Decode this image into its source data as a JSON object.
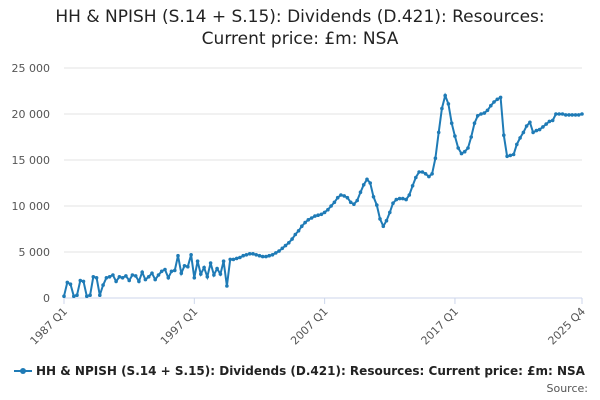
{
  "title_line1": "HH & NPISH (S.14 + S.15): Dividends (D.421): Resources:",
  "title_line2": "Current price: £m: NSA",
  "legend_label": "HH & NPISH (S.14 + S.15): Dividends (D.421): Resources: Current price: £m: NSA",
  "source_label": "Source:",
  "series_color": "#1f7bb6",
  "chart_data": {
    "type": "line",
    "title": "HH & NPISH (S.14 + S.15): Dividends (D.421): Resources: Current price: £m: NSA",
    "xlabel": "",
    "ylabel": "",
    "ylim": [
      0,
      25000
    ],
    "yticks": [
      0,
      5000,
      10000,
      15000,
      20000,
      25000
    ],
    "ytick_labels": [
      "0",
      "5 000",
      "10 000",
      "15 000",
      "20 000",
      "25 000"
    ],
    "xtick_labels": [
      "1987 Q1",
      "1997 Q1",
      "2007 Q1",
      "2017 Q1",
      "2025 Q4"
    ],
    "x_start": "1987 Q1",
    "x_end": "2025 Q4",
    "grid": true,
    "legend": "bottom",
    "series": [
      {
        "name": "HH & NPISH (S.14 + S.15): Dividends (D.421): Resources: Current price: £m: NSA",
        "values": [
          200,
          1700,
          1500,
          200,
          300,
          1900,
          1800,
          200,
          300,
          2300,
          2200,
          300,
          1400,
          2200,
          2300,
          2500,
          1800,
          2300,
          2200,
          2400,
          1900,
          2500,
          2400,
          1800,
          2800,
          2000,
          2300,
          2700,
          2000,
          2500,
          2900,
          3100,
          2200,
          2900,
          3000,
          4600,
          2700,
          3500,
          3400,
          4700,
          2200,
          4000,
          2600,
          3300,
          2300,
          3800,
          2500,
          3200,
          2600,
          4000,
          1300,
          4200,
          4200,
          4300,
          4400,
          4600,
          4700,
          4800,
          4800,
          4700,
          4600,
          4500,
          4500,
          4600,
          4700,
          4900,
          5100,
          5400,
          5700,
          6000,
          6400,
          6900,
          7300,
          7800,
          8200,
          8500,
          8700,
          8900,
          9000,
          9100,
          9300,
          9600,
          10000,
          10400,
          10900,
          11200,
          11100,
          10900,
          10400,
          10200,
          10600,
          11500,
          12300,
          12900,
          12500,
          11000,
          10100,
          8600,
          7800,
          8400,
          9300,
          10300,
          10700,
          10800,
          10800,
          10700,
          11200,
          12200,
          13100,
          13700,
          13700,
          13500,
          13200,
          13500,
          15200,
          18000,
          20600,
          22000,
          21100,
          19000,
          17600,
          16300,
          15700,
          15900,
          16300,
          17500,
          19000,
          19800,
          20000,
          20100,
          20400,
          20900,
          21300,
          21600,
          21800,
          17700,
          15400,
          15500,
          15600,
          16700,
          17400,
          18000,
          18700,
          19100,
          18000,
          18200,
          18300,
          18600,
          18900,
          19200,
          19300,
          20000,
          20000,
          20000,
          19900,
          19900,
          19900,
          19900,
          19900,
          20000
        ]
      }
    ]
  }
}
